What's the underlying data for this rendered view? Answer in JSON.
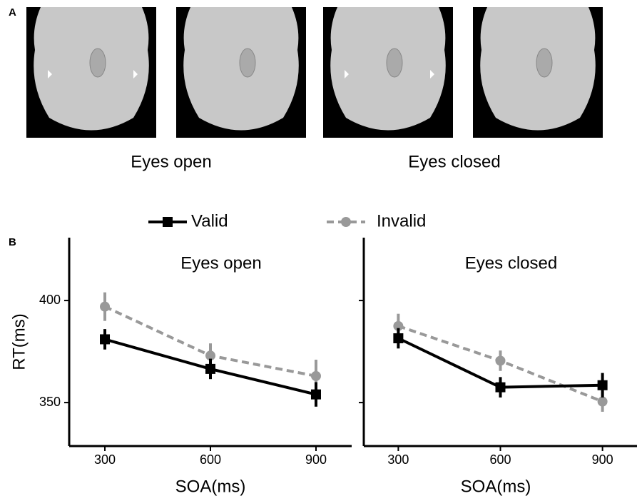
{
  "panel_a": {
    "label": "A",
    "captions": [
      "Eyes open",
      "Eyes closed"
    ]
  },
  "panel_b": {
    "label": "B"
  },
  "chart_data": [
    {
      "type": "line",
      "title": "Eyes open",
      "xlabel": "SOA(ms)",
      "ylabel": "RT(ms)",
      "x": [
        300,
        600,
        900
      ],
      "xlim": [
        198.6,
        1001.4
      ],
      "xticks": [
        300,
        600,
        900
      ],
      "ylim": [
        328.7,
        430.8
      ],
      "yticks": [
        350,
        400
      ],
      "show_ytick_labels": true,
      "series": [
        {
          "name": "Valid",
          "color": "#000000",
          "dash": false,
          "marker": "square",
          "values": [
            381,
            366.5,
            354
          ],
          "errors": [
            5,
            5,
            6
          ]
        },
        {
          "name": "Invalid",
          "color": "#999999",
          "dash": true,
          "marker": "circle",
          "values": [
            397,
            373,
            363
          ],
          "errors": [
            7,
            6,
            8
          ]
        }
      ]
    },
    {
      "type": "line",
      "title": "Eyes closed",
      "xlabel": "SOA(ms)",
      "x": [
        300,
        600,
        900
      ],
      "xlim": [
        198.6,
        1001.4
      ],
      "xticks": [
        300,
        600,
        900
      ],
      "ylim": [
        328.7,
        430.8
      ],
      "yticks": [
        350,
        400
      ],
      "show_ytick_labels": false,
      "series": [
        {
          "name": "Valid",
          "color": "#000000",
          "dash": false,
          "marker": "square",
          "values": [
            381.5,
            357.5,
            358.5
          ],
          "errors": [
            5,
            5,
            6
          ]
        },
        {
          "name": "Invalid",
          "color": "#999999",
          "dash": true,
          "marker": "circle",
          "values": [
            387.5,
            370.5,
            350.5
          ],
          "errors": [
            6,
            5,
            5
          ]
        }
      ]
    }
  ]
}
